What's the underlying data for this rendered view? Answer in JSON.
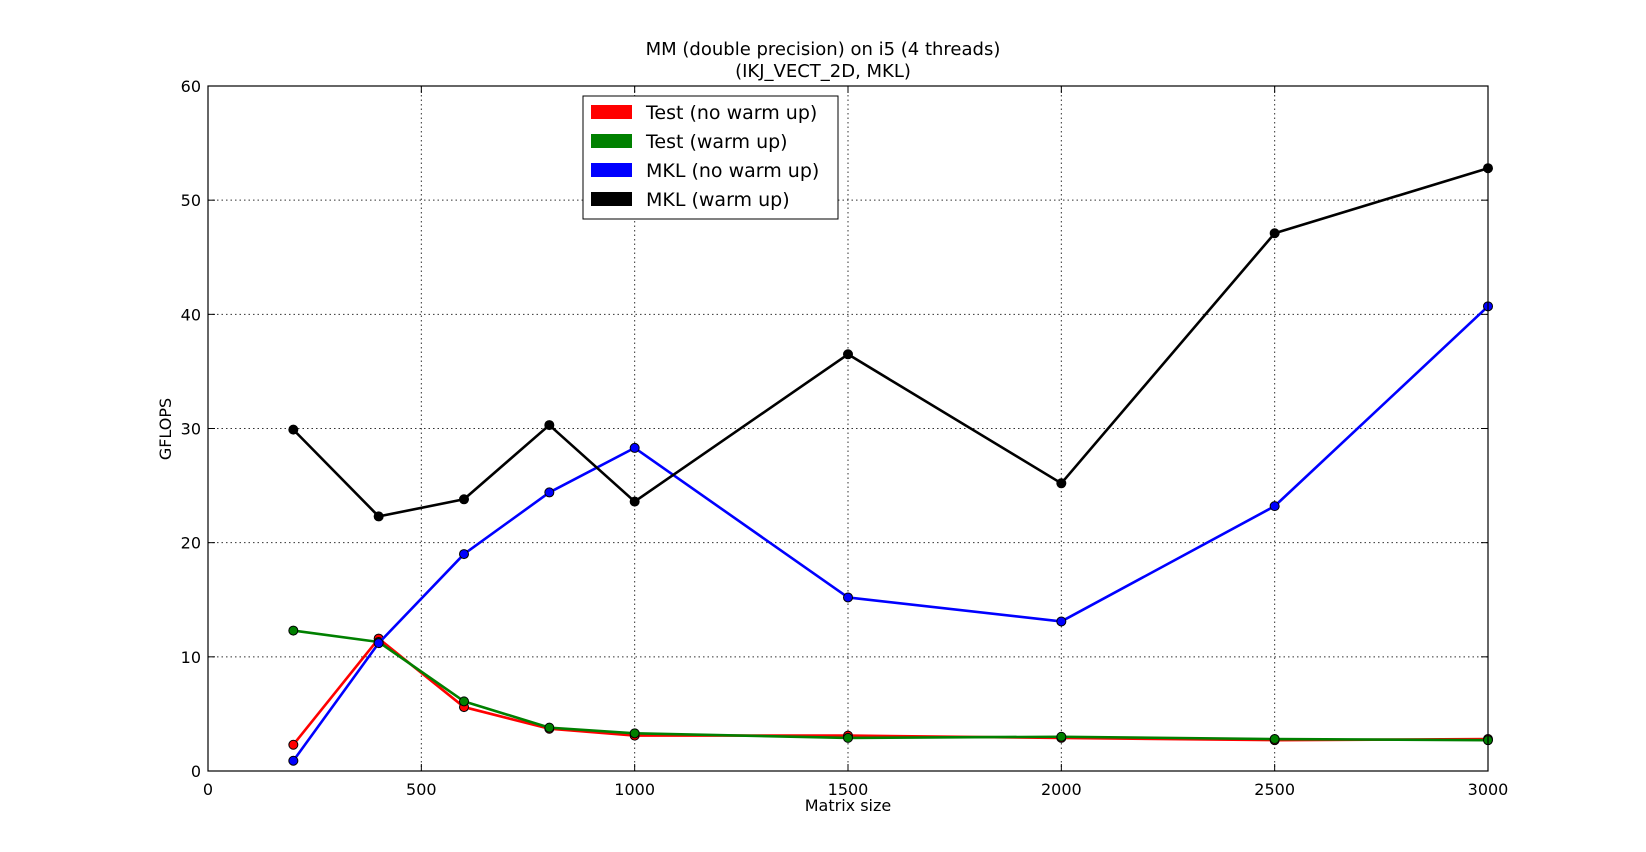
{
  "chart_data": {
    "type": "line",
    "title": "MM (double precision) on i5 (4 threads)",
    "subtitle": "(IKJ_VECT_2D, MKL)",
    "xlabel": "Matrix size",
    "ylabel": "GFLOPS",
    "xlim": [
      0,
      3000
    ],
    "ylim": [
      0,
      60
    ],
    "xticks": [
      0,
      500,
      1000,
      1500,
      2000,
      2500,
      3000
    ],
    "yticks": [
      0,
      10,
      20,
      30,
      40,
      50,
      60
    ],
    "grid": true,
    "legend_position": "top-center",
    "x": [
      200,
      400,
      600,
      800,
      1000,
      1500,
      2000,
      2500,
      3000
    ],
    "series": [
      {
        "name": "Test (no warm up)",
        "color": "#ff0000",
        "values": [
          2.3,
          11.6,
          5.6,
          3.7,
          3.1,
          3.1,
          2.9,
          2.7,
          2.8
        ]
      },
      {
        "name": "Test (warm up)",
        "color": "#008000",
        "values": [
          12.3,
          11.3,
          6.1,
          3.8,
          3.3,
          2.9,
          3.0,
          2.8,
          2.7
        ]
      },
      {
        "name": "MKL (no warm up)",
        "color": "#0000ff",
        "values": [
          0.9,
          11.2,
          19.0,
          24.4,
          28.3,
          15.2,
          13.1,
          23.2,
          40.7
        ]
      },
      {
        "name": "MKL (warm up)",
        "color": "#000000",
        "values": [
          29.9,
          22.3,
          23.8,
          30.3,
          23.6,
          36.5,
          25.2,
          47.1,
          52.8
        ]
      }
    ]
  }
}
